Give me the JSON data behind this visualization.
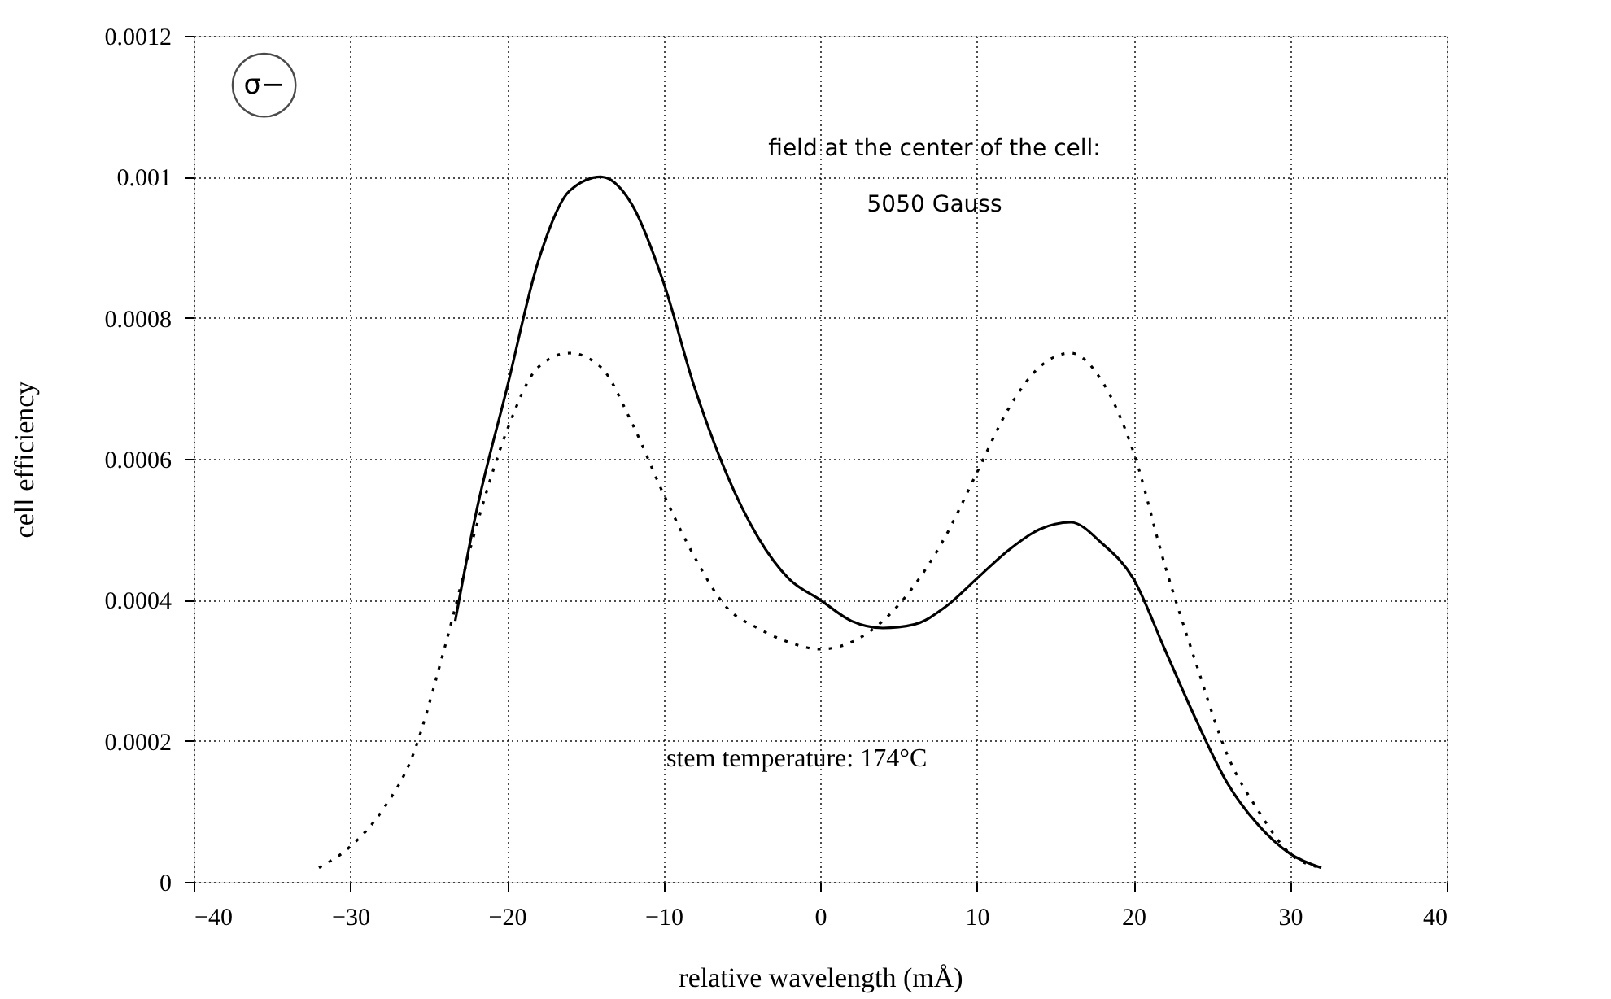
{
  "chart_data": {
    "type": "line",
    "xlabel": "relative wavelength (mÅ)",
    "ylabel": "cell efficiency",
    "xlim": [
      -40,
      40
    ],
    "xticks": [
      -40,
      -30,
      -20,
      -10,
      0,
      10,
      20,
      30,
      40
    ],
    "ylim": [
      0,
      0.0012
    ],
    "yticks": [
      0,
      0.0002,
      0.0004,
      0.0006,
      0.0008,
      0.001,
      0.0012
    ],
    "grid": true,
    "marker": "none",
    "annotations": [
      "σ−",
      "field at the center of the cell:",
      "5050 Gauss",
      "stem temperature: 174°C"
    ],
    "series": [
      {
        "color": "#000000",
        "line_style": "solid",
        "x": [
          -23.3,
          -22,
          -20,
          -18,
          -16,
          -14,
          -12,
          -10,
          -8,
          -6,
          -4,
          -2,
          0,
          2,
          4,
          6,
          8,
          10,
          12,
          14,
          16,
          18,
          20,
          22,
          24,
          26,
          28,
          30,
          32
        ],
        "values": [
          0.00037,
          0.00052,
          0.0007,
          0.00088,
          0.00098,
          0.001,
          0.00096,
          0.00085,
          0.0007,
          0.00058,
          0.00049,
          0.00043,
          0.0004,
          0.00037,
          0.00036,
          0.000365,
          0.00039,
          0.00043,
          0.00047,
          0.0005,
          0.00051,
          0.00048,
          0.00043,
          0.00033,
          0.00023,
          0.00014,
          8e-05,
          4e-05,
          2e-05
        ]
      },
      {
        "color": "#000000",
        "line_style": "dotted",
        "x": [
          -32,
          -30,
          -28,
          -26,
          -24,
          -22,
          -20,
          -18,
          -16,
          -14,
          -12,
          -10,
          -8,
          -6,
          -4,
          -2,
          0,
          2,
          4,
          6,
          8,
          10,
          12,
          14,
          16,
          18,
          20,
          22,
          24,
          26,
          28,
          30,
          32
        ],
        "values": [
          2e-05,
          5e-05,
          0.0001,
          0.00018,
          0.00033,
          0.0005,
          0.00064,
          0.00073,
          0.00075,
          0.00073,
          0.00065,
          0.00055,
          0.00046,
          0.00039,
          0.00036,
          0.00034,
          0.00033,
          0.00034,
          0.00037,
          0.00042,
          0.00049,
          0.00058,
          0.00067,
          0.00073,
          0.00075,
          0.00071,
          0.00061,
          0.00045,
          0.00031,
          0.00018,
          0.0001,
          4e-05,
          2e-05
        ]
      }
    ]
  }
}
